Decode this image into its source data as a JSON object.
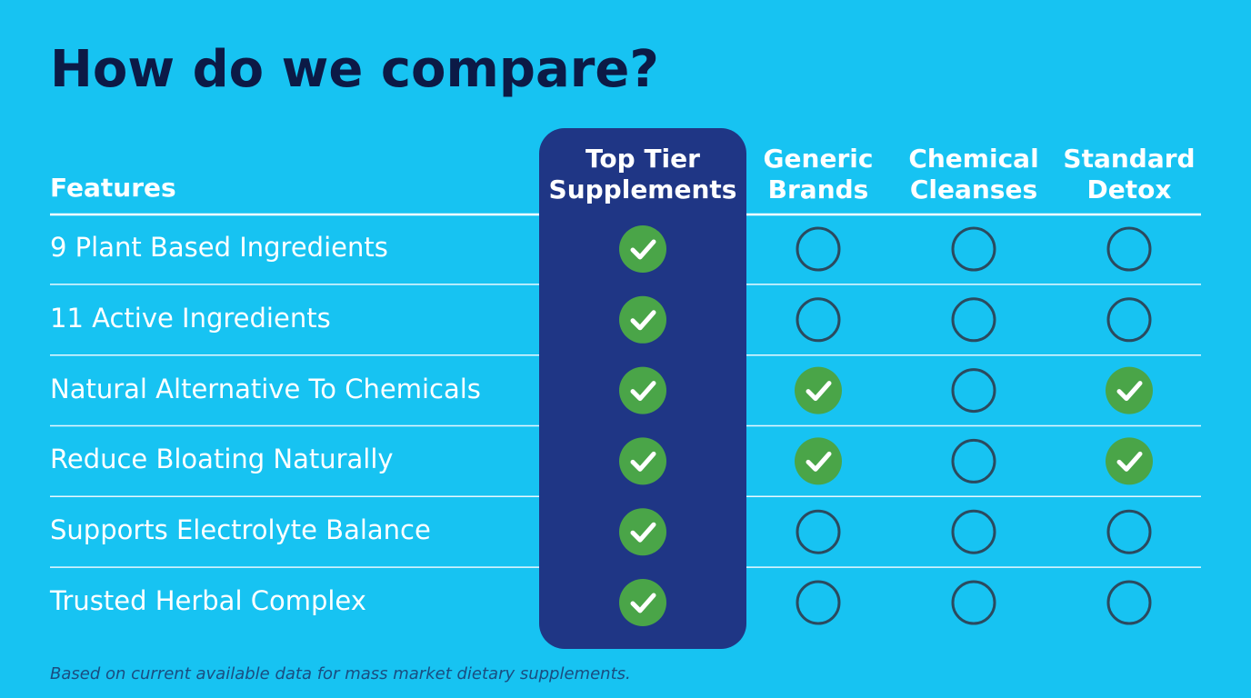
{
  "title": "How do we compare?",
  "table": {
    "columns": [
      "Features",
      "Top Tier Supplements",
      "Generic Brands",
      "Chemical Cleanses",
      "Standard Detox"
    ],
    "rows": [
      {
        "feature": "9 Plant Based Ingredients",
        "checks": [
          true,
          false,
          false,
          false
        ]
      },
      {
        "feature": "11 Active Ingredients",
        "checks": [
          true,
          false,
          false,
          false
        ]
      },
      {
        "feature": "Natural Alternative To Chemicals",
        "checks": [
          true,
          true,
          false,
          true
        ]
      },
      {
        "feature": "Reduce Bloating Naturally",
        "checks": [
          true,
          true,
          false,
          true
        ]
      },
      {
        "feature": "Supports Electrolyte Balance",
        "checks": [
          true,
          false,
          false,
          false
        ]
      },
      {
        "feature": "Trusted Herbal Complex",
        "checks": [
          true,
          false,
          false,
          false
        ]
      }
    ]
  },
  "footnote": "Based on current available data for mass market dietary supplements."
}
